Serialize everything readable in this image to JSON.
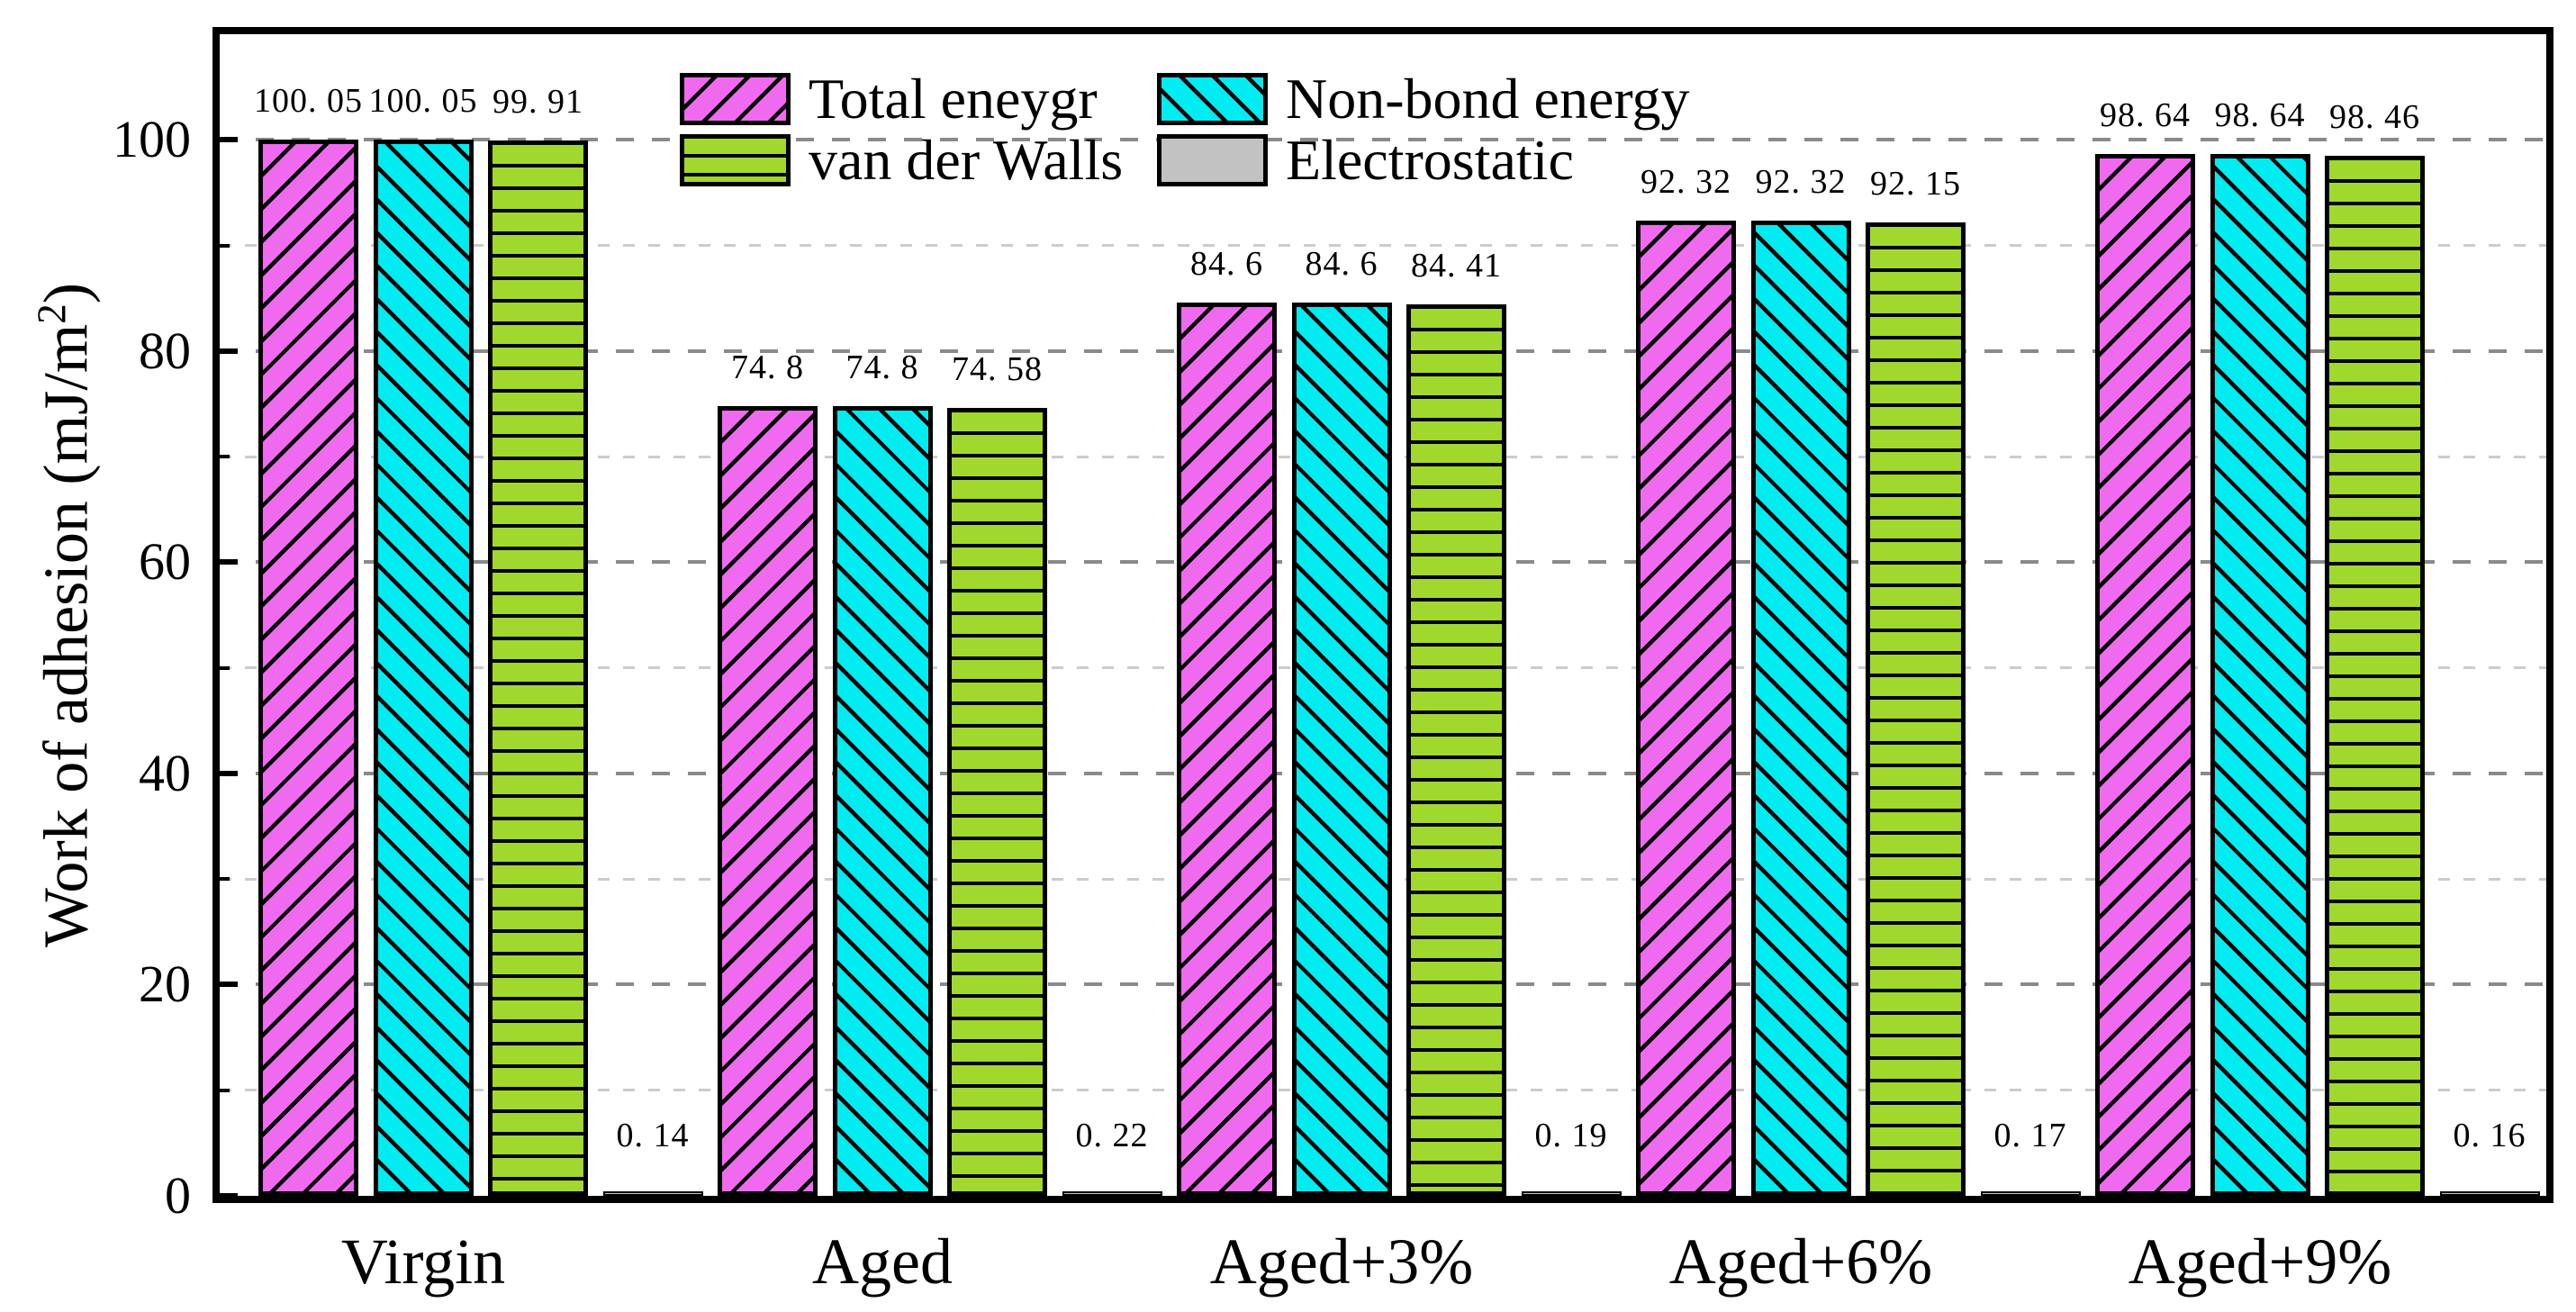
{
  "ylabel": {
    "prefix": "Work of adhesion (mJ/m",
    "sup": "2",
    "suffix": ")"
  },
  "chart_data": {
    "type": "bar",
    "title": "",
    "xlabel": "",
    "ylabel": "Work of adhesion (mJ/m2)",
    "categories": [
      "Virgin",
      "Aged",
      "Aged+3%",
      "Aged+6%",
      "Aged+9%"
    ],
    "series": [
      {
        "name": "Total eneygr",
        "color": "#f06af0",
        "hatch": "/",
        "values": [
          100.05,
          74.8,
          84.6,
          92.32,
          98.64
        ],
        "labels": [
          "100. 05",
          "74. 8",
          "84. 6",
          "92. 32",
          "98. 64"
        ]
      },
      {
        "name": "Non-bond energy",
        "color": "#00ecf0",
        "hatch": "\\",
        "values": [
          100.05,
          74.8,
          84.6,
          92.32,
          98.64
        ],
        "labels": [
          "100. 05",
          "74. 8",
          "84. 6",
          "92. 32",
          "98. 64"
        ]
      },
      {
        "name": "van der Walls",
        "color": "#a1d82e",
        "hatch": "-",
        "values": [
          99.91,
          74.58,
          84.41,
          92.15,
          98.46
        ],
        "labels": [
          "99. 91",
          "74. 58",
          "84. 41",
          "92. 15",
          "98. 46"
        ]
      },
      {
        "name": "Electrostatic",
        "color": "#c2c2c2",
        "hatch": "",
        "values": [
          0.14,
          0.22,
          0.19,
          0.17,
          0.16
        ],
        "labels": [
          "0. 14",
          "0. 22",
          "0. 19",
          "0. 17",
          "0. 16"
        ]
      }
    ],
    "ylim": [
      0,
      110
    ],
    "yticks_major": [
      0,
      20,
      40,
      60,
      80,
      100
    ],
    "yticks_minor": [
      10,
      30,
      50,
      70,
      90
    ],
    "grid": "horizontal dashed; major gray #8a8a8a, minor light #cccccc",
    "legend_position": "upper center, 2 columns, no frame",
    "colors": {
      "major_grid": "#8a8a8a",
      "minor_grid": "#cccccc",
      "axis": "#000000",
      "background": "#ffffff"
    }
  }
}
